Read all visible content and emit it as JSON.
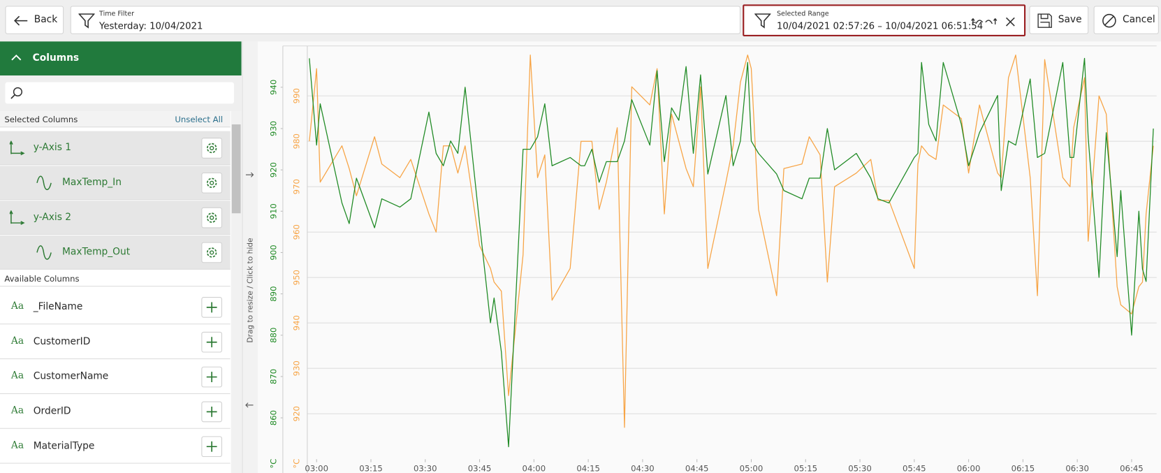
{
  "toolbar": {
    "back": "Back",
    "time_filter": {
      "label": "Time Filter",
      "value": "Yesterday: 10/04/2021"
    },
    "selected_range": {
      "label": "Selected Range",
      "value": "10/04/2021 02:57:26 – 10/04/2021 06:51:54"
    },
    "save": "Save",
    "cancel": "Cancel"
  },
  "sidebar": {
    "title": "Columns",
    "selected_heading": "Selected Columns",
    "unselect_all": "Unselect All",
    "selected": [
      {
        "label": "y-Axis 1"
      },
      {
        "label": "y-Axis 2"
      }
    ],
    "available_heading": "Available Columns",
    "available": [
      {
        "icon": "Aa",
        "label": "_FileName"
      },
      {
        "icon": "Aa",
        "label": "CustomerID"
      },
      {
        "icon": "Aa",
        "label": "CustomerName"
      },
      {
        "icon": "Aa",
        "label": "OrderID"
      },
      {
        "icon": "Aa",
        "label": "MaterialType"
      }
    ]
  },
  "resize_handle": "Drag to resize / Click to hide",
  "chart_data": {
    "type": "line",
    "x": [
      "02:58",
      "03:00",
      "03:01",
      "03:07",
      "03:09",
      "03:11",
      "03:16",
      "03:18",
      "03:23",
      "03:26",
      "03:31",
      "03:33",
      "03:35",
      "03:37",
      "03:39",
      "03:41",
      "03:45",
      "03:48",
      "03:49",
      "03:51",
      "03:53",
      "03:57",
      "03:59",
      "04:01",
      "04:03",
      "04:05",
      "04:10",
      "04:13",
      "04:14",
      "04:16",
      "04:18",
      "04:20",
      "04:23",
      "04:25",
      "04:27",
      "04:32",
      "04:34",
      "04:36",
      "04:38",
      "04:40",
      "04:42",
      "04:44",
      "04:46",
      "04:48",
      "04:53",
      "04:55",
      "04:57",
      "04:59",
      "05:00",
      "05:02",
      "05:07",
      "05:09",
      "05:14",
      "05:16",
      "05:19",
      "05:21",
      "05:23",
      "05:29",
      "05:33",
      "05:35",
      "05:38",
      "05:45",
      "05:46",
      "05:47",
      "05:49",
      "05:51",
      "05:53",
      "05:58",
      "06:00",
      "06:03",
      "06:08",
      "06:09",
      "06:11",
      "06:13",
      "06:17",
      "06:19",
      "06:21",
      "06:26",
      "06:28",
      "06:29",
      "06:32",
      "06:33",
      "06:36",
      "06:38",
      "06:41",
      "06:42",
      "06:45",
      "06:47",
      "06:48",
      "06:49",
      "06:51"
    ],
    "series": [
      {
        "name": "MaxTemp_In",
        "color": "#1f8a24",
        "values": [
          947,
          926,
          936,
          912,
          907,
          918,
          906,
          913,
          911,
          913,
          934,
          924,
          921,
          927,
          924,
          940,
          907,
          883,
          889,
          876,
          853,
          925,
          925,
          928,
          936,
          921,
          923,
          921,
          921,
          925,
          917,
          922,
          922,
          927,
          937,
          926,
          944,
          922,
          935,
          932,
          945,
          924,
          943,
          919,
          938,
          921,
          927,
          946,
          927,
          924,
          919,
          915,
          913,
          918,
          918,
          930,
          920,
          924,
          918,
          913,
          912,
          923,
          924,
          946,
          931,
          927,
          946,
          931,
          921,
          929,
          938,
          915,
          927,
          926,
          942,
          923,
          924,
          946,
          923,
          923,
          947,
          928,
          894,
          929,
          899,
          915,
          880,
          910,
          896,
          893,
          930
        ]
      },
      {
        "name": "MaxTemp_Out",
        "color": "#f7a445",
        "axis": "y2",
        "values": [
          980,
          996,
          971,
          979,
          974,
          968,
          981,
          975,
          972,
          976,
          964,
          960,
          979,
          979,
          973,
          979,
          957,
          952,
          949,
          947,
          924,
          955,
          999,
          972,
          977,
          945,
          952,
          980,
          980,
          980,
          965,
          971,
          983,
          917,
          992,
          988,
          996,
          964,
          986,
          980,
          974,
          970,
          992,
          952,
          971,
          979,
          993,
          999,
          996,
          965,
          946,
          974,
          975,
          981,
          977,
          949,
          970,
          973,
          976,
          967,
          967,
          952,
          975,
          979,
          977,
          976,
          988,
          985,
          973,
          988,
          973,
          972,
          994,
          999,
          972,
          946,
          998,
          972,
          970,
          983,
          994,
          958,
          990,
          986,
          948,
          944,
          942,
          948,
          949,
          964,
          979
        ]
      }
    ],
    "xlim": [
      "02:57:26",
      "06:51:54"
    ],
    "xticks": [
      "03:00",
      "03:15",
      "03:30",
      "03:45",
      "04:00",
      "04:15",
      "04:30",
      "04:45",
      "05:00",
      "05:15",
      "05:30",
      "05:45",
      "06:00",
      "06:15",
      "06:30",
      "06:45"
    ],
    "ylim": [
      850,
      950
    ],
    "yticks": [
      860,
      870,
      880,
      890,
      900,
      910,
      920,
      930,
      940
    ],
    "y2lim": [
      910,
      1001
    ],
    "y2ticks": [
      920,
      930,
      940,
      950,
      960,
      970,
      980,
      990
    ],
    "y_label": "°C",
    "y2_label": "°C",
    "grid": true
  }
}
